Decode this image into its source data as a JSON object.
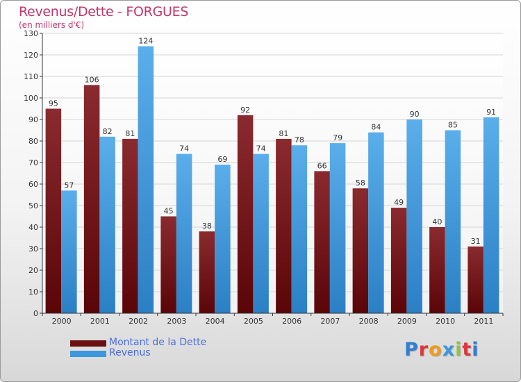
{
  "header": {
    "title": "Revenus/Dette - FORGUES",
    "subtitle": "(en milliers d'€)"
  },
  "colors": {
    "dette": "#7a1e22",
    "revenus": "#3d97de",
    "title": "#c0386b",
    "legend_text": "#4a6ee0"
  },
  "legend": {
    "placement": "bottom-left",
    "items": [
      {
        "label": "Montant de la Dette",
        "color": "#6a0f12"
      },
      {
        "label": "Revenus",
        "color": "#3d97de"
      }
    ]
  },
  "logo": {
    "text": "Proxiti",
    "letter_colors": [
      "#2f7fd0",
      "#e0353a",
      "#f09a1c",
      "#3d97de",
      "#8fc43c",
      "#e0353a",
      "#2f7fd0"
    ]
  },
  "chart_data": {
    "type": "bar",
    "title": "Revenus/Dette - FORGUES",
    "subtitle": "(en milliers d'€)",
    "xlabel": "",
    "ylabel": "",
    "categories": [
      "2000",
      "2001",
      "2002",
      "2003",
      "2004",
      "2005",
      "2006",
      "2007",
      "2008",
      "2009",
      "2010",
      "2011"
    ],
    "series": [
      {
        "name": "Montant de la Dette",
        "values": [
          95,
          106,
          81,
          45,
          38,
          92,
          81,
          66,
          58,
          49,
          40,
          31
        ]
      },
      {
        "name": "Revenus",
        "values": [
          57,
          82,
          124,
          74,
          69,
          74,
          78,
          79,
          84,
          90,
          85,
          91
        ]
      }
    ],
    "ylim": [
      0,
      130
    ],
    "yticks": [
      0,
      10,
      20,
      30,
      40,
      50,
      60,
      70,
      80,
      90,
      100,
      110,
      120,
      130
    ],
    "grid": true,
    "legend": "bottom-left"
  }
}
